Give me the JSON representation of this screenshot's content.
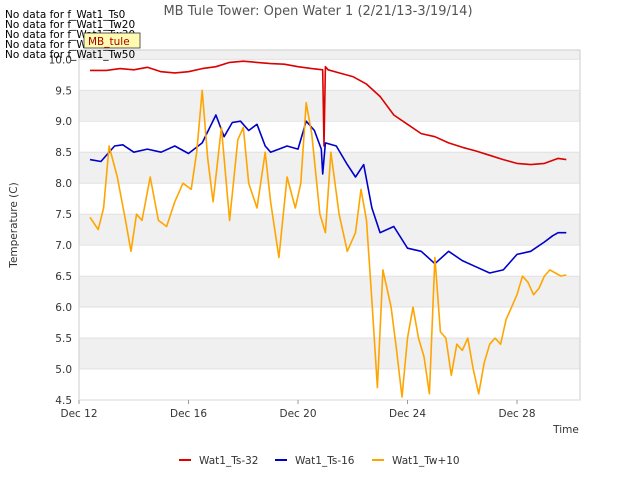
{
  "chart_data": {
    "type": "line",
    "title": "MB Tule Tower: Open Water 1 (2/21/13-3/19/14)",
    "xlabel": "Time",
    "ylabel": "Temperature (C)",
    "xlim": [
      12,
      30.3
    ],
    "ylim": [
      4.5,
      10.15
    ],
    "x_ticks": [
      12,
      16,
      20,
      24,
      28
    ],
    "x_tick_labels": [
      "Dec 12",
      "Dec 16",
      "Dec 20",
      "Dec 24",
      "Dec 28"
    ],
    "y_ticks": [
      4.5,
      5.0,
      5.5,
      6.0,
      6.5,
      7.0,
      7.5,
      8.0,
      8.5,
      9.0,
      9.5,
      10.0
    ],
    "y_tick_labels": [
      "4.5",
      "5.0",
      "5.5",
      "6.0",
      "6.5",
      "7.0",
      "7.5",
      "8.0",
      "8.5",
      "9.0",
      "9.5",
      "10.0"
    ],
    "no_data_messages": [
      "No data for f_Wat1_Ts0",
      "No data for f_Wat1_Tw20",
      "No data for f_Wat1_Tw30",
      "No data for f_Wat1_Tw40",
      "No data for f_Wat1_Tw50"
    ],
    "tag_label": "MB_tule",
    "legend_position": "bottom-center",
    "series": [
      {
        "name": "Wat1_Ts-32",
        "color": "#dd0000",
        "x": [
          12.4,
          13.0,
          13.5,
          14.0,
          14.5,
          15.0,
          15.5,
          16.0,
          16.5,
          17.0,
          17.5,
          18.0,
          18.5,
          19.0,
          19.5,
          20.0,
          20.5,
          20.9,
          20.95,
          21.0,
          21.1,
          21.5,
          22.0,
          22.5,
          23.0,
          23.5,
          24.0,
          24.5,
          25.0,
          25.5,
          26.0,
          26.5,
          27.0,
          27.5,
          28.0,
          28.5,
          29.0,
          29.5,
          29.8
        ],
        "values": [
          9.82,
          9.82,
          9.85,
          9.83,
          9.87,
          9.8,
          9.78,
          9.8,
          9.85,
          9.88,
          9.95,
          9.97,
          9.95,
          9.93,
          9.92,
          9.88,
          9.85,
          9.83,
          8.6,
          9.88,
          9.83,
          9.78,
          9.72,
          9.6,
          9.4,
          9.1,
          8.95,
          8.8,
          8.75,
          8.65,
          8.58,
          8.52,
          8.45,
          8.38,
          8.32,
          8.3,
          8.32,
          8.4,
          8.38
        ]
      },
      {
        "name": "Wat1_Ts-16",
        "color": "#0000cc",
        "x": [
          12.4,
          12.8,
          13.3,
          13.6,
          14.0,
          14.5,
          15.0,
          15.5,
          16.0,
          16.5,
          17.0,
          17.3,
          17.6,
          17.9,
          18.2,
          18.5,
          18.8,
          19.0,
          19.3,
          19.6,
          20.0,
          20.3,
          20.6,
          20.85,
          20.9,
          21.0,
          21.4,
          21.8,
          22.1,
          22.4,
          22.7,
          23.0,
          23.5,
          24.0,
          24.5,
          25.0,
          25.5,
          26.0,
          26.5,
          27.0,
          27.5,
          28.0,
          28.5,
          29.0,
          29.3,
          29.5,
          29.8
        ],
        "values": [
          8.38,
          8.35,
          8.6,
          8.62,
          8.5,
          8.55,
          8.5,
          8.6,
          8.48,
          8.65,
          9.1,
          8.75,
          8.98,
          9.0,
          8.85,
          8.95,
          8.6,
          8.5,
          8.55,
          8.6,
          8.55,
          9.0,
          8.85,
          8.55,
          8.15,
          8.65,
          8.6,
          8.3,
          8.1,
          8.3,
          7.6,
          7.2,
          7.3,
          6.95,
          6.9,
          6.7,
          6.9,
          6.75,
          6.65,
          6.55,
          6.6,
          6.85,
          6.9,
          7.05,
          7.15,
          7.2,
          7.2
        ]
      },
      {
        "name": "Wat1_Tw+10",
        "color": "#ffa500",
        "x": [
          12.4,
          12.7,
          12.9,
          13.1,
          13.4,
          13.7,
          13.9,
          14.1,
          14.3,
          14.6,
          14.9,
          15.2,
          15.5,
          15.8,
          16.1,
          16.3,
          16.5,
          16.7,
          16.9,
          17.2,
          17.5,
          17.8,
          18.0,
          18.2,
          18.5,
          18.8,
          19.0,
          19.3,
          19.6,
          19.9,
          20.1,
          20.3,
          20.5,
          20.8,
          21.0,
          21.2,
          21.5,
          21.8,
          22.1,
          22.3,
          22.5,
          22.7,
          22.9,
          23.1,
          23.4,
          23.6,
          23.8,
          24.0,
          24.2,
          24.4,
          24.6,
          24.8,
          25.0,
          25.2,
          25.4,
          25.6,
          25.8,
          26.0,
          26.2,
          26.4,
          26.6,
          26.8,
          27.0,
          27.2,
          27.4,
          27.6,
          27.8,
          28.0,
          28.2,
          28.4,
          28.6,
          28.8,
          29.0,
          29.2,
          29.4,
          29.6,
          29.8
        ],
        "values": [
          7.45,
          7.25,
          7.6,
          8.6,
          8.1,
          7.4,
          6.9,
          7.5,
          7.4,
          8.1,
          7.4,
          7.3,
          7.7,
          8.0,
          7.9,
          8.5,
          9.5,
          8.4,
          7.7,
          8.9,
          7.4,
          8.7,
          8.9,
          8.0,
          7.6,
          8.5,
          7.7,
          6.8,
          8.1,
          7.6,
          8.0,
          9.3,
          8.8,
          7.5,
          7.2,
          8.5,
          7.5,
          6.9,
          7.2,
          7.9,
          7.4,
          6.1,
          4.7,
          6.6,
          6.0,
          5.3,
          4.55,
          5.5,
          6.0,
          5.5,
          5.2,
          4.6,
          6.8,
          5.6,
          5.5,
          4.9,
          5.4,
          5.3,
          5.5,
          5.0,
          4.6,
          5.1,
          5.4,
          5.5,
          5.4,
          5.8,
          6.0,
          6.2,
          6.5,
          6.4,
          6.2,
          6.3,
          6.5,
          6.6,
          6.55,
          6.5,
          6.52
        ]
      }
    ]
  }
}
